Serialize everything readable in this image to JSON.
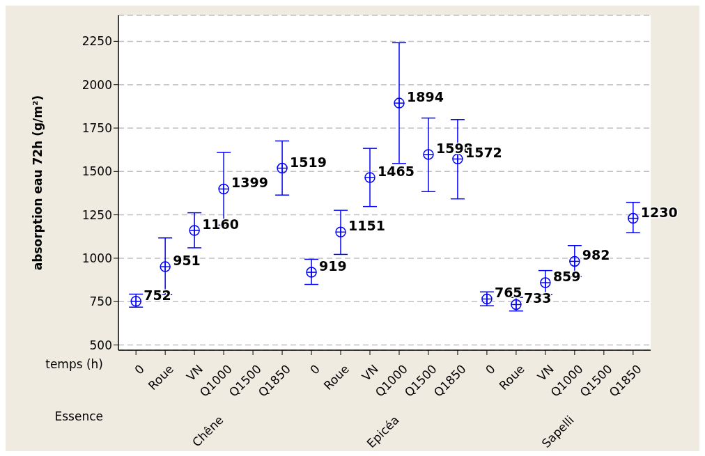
{
  "chart_data": {
    "type": "scatter",
    "xlabel": "temps (h)",
    "ylabel": "absorption eau 72h (g/m²)",
    "categories": [
      "0",
      "Roue",
      "VN",
      "Q1000",
      "Q1500",
      "Q1850",
      "0",
      "Roue",
      "VN",
      "Q1000",
      "Q1500",
      "Q1850",
      "0",
      "Roue",
      "VN",
      "Q1000",
      "Q1500",
      "Q1850"
    ],
    "series": [
      {
        "color": "#0000ff",
        "values": [
          752,
          951,
          1160,
          1399,
          null,
          1519,
          919,
          1151,
          1465,
          1894,
          1598,
          1572,
          765,
          733,
          859,
          982,
          null,
          1230
        ],
        "errors": [
          [
            718,
            793
          ],
          [
            790,
            1117
          ],
          [
            1060,
            1262
          ],
          [
            1191,
            1610
          ],
          null,
          [
            1364,
            1676
          ],
          [
            849,
            994
          ],
          [
            1022,
            1276
          ],
          [
            1298,
            1633
          ],
          [
            1546,
            2242
          ],
          [
            1384,
            1808
          ],
          [
            1342,
            1799
          ],
          [
            726,
            806
          ],
          [
            696,
            774
          ],
          [
            790,
            929
          ],
          [
            894,
            1073
          ],
          null,
          [
            1147,
            1322
          ]
        ]
      }
    ],
    "ylim": [
      470,
      2400
    ],
    "yticks": [
      500,
      750,
      1000,
      1250,
      1500,
      1750,
      2000,
      2250
    ],
    "grid": "y",
    "marker": "circle",
    "data_labels": true,
    "annotations": [
      "Essence",
      "Chêne",
      "Epicéa",
      "Sapelli"
    ]
  }
}
